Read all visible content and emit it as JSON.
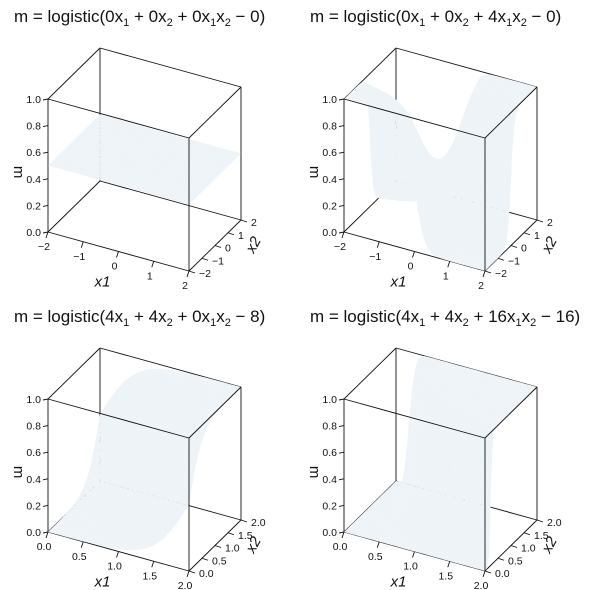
{
  "colors": {
    "mesh": "#7fb1dc",
    "face": "#eef3f8",
    "axis": "#111111"
  },
  "chart_data": [
    {
      "type": "surface",
      "title_parts": [
        "m = logistic(0x",
        "1",
        " + 0x",
        "2",
        " + 0x",
        "1",
        "x",
        "2",
        " − 0)"
      ],
      "coef": {
        "b1": 0,
        "b2": 0,
        "b12": 0,
        "c": 0
      },
      "xlabel": "x1",
      "ylabel": "x2",
      "zlabel": "m",
      "xlim": [
        -2,
        2
      ],
      "ylim": [
        -2,
        2
      ],
      "zlim": [
        0,
        1
      ],
      "xticks": [
        "−2",
        "−1",
        "0",
        "1",
        "2"
      ],
      "yticks": [
        "−2",
        "−1",
        "0",
        "1",
        "2"
      ],
      "zticks": [
        "0.0",
        "0.2",
        "0.4",
        "0.6",
        "0.8",
        "1.0"
      ],
      "grid_n": 25
    },
    {
      "type": "surface",
      "title_parts": [
        "m = logistic(0x",
        "1",
        " + 0x",
        "2",
        " + 4x",
        "1",
        "x",
        "2",
        " − 0)"
      ],
      "coef": {
        "b1": 0,
        "b2": 0,
        "b12": 4,
        "c": 0
      },
      "xlabel": "x1",
      "ylabel": "x2",
      "zlabel": "m",
      "xlim": [
        -2,
        2
      ],
      "ylim": [
        -2,
        2
      ],
      "zlim": [
        0,
        1
      ],
      "xticks": [
        "−2",
        "−1",
        "0",
        "1",
        "2"
      ],
      "yticks": [
        "−2",
        "−1",
        "0",
        "1",
        "2"
      ],
      "zticks": [
        "0.0",
        "0.2",
        "0.4",
        "0.6",
        "0.8",
        "1.0"
      ],
      "grid_n": 25
    },
    {
      "type": "surface",
      "title_parts": [
        "m = logistic(4x",
        "1",
        " + 4x",
        "2",
        " + 0x",
        "1",
        "x",
        "2",
        " − 8)"
      ],
      "coef": {
        "b1": 4,
        "b2": 4,
        "b12": 0,
        "c": -8
      },
      "xlabel": "x1",
      "ylabel": "x2",
      "zlabel": "m",
      "xlim": [
        0,
        2
      ],
      "ylim": [
        0,
        2
      ],
      "zlim": [
        0,
        1
      ],
      "xticks": [
        "0.0",
        "0.5",
        "1.0",
        "1.5",
        "2.0"
      ],
      "yticks": [
        "0.0",
        "0.5",
        "1.0",
        "1.5",
        "2.0"
      ],
      "zticks": [
        "0.0",
        "0.2",
        "0.4",
        "0.6",
        "0.8",
        "1.0"
      ],
      "grid_n": 25
    },
    {
      "type": "surface",
      "title_parts": [
        "m = logistic(4x",
        "1",
        " + 4x",
        "2",
        " + 16x",
        "1",
        "x",
        "2",
        " − 16)"
      ],
      "coef": {
        "b1": 4,
        "b2": 4,
        "b12": 16,
        "c": -16
      },
      "xlabel": "x1",
      "ylabel": "x2",
      "zlabel": "m",
      "xlim": [
        0,
        2
      ],
      "ylim": [
        0,
        2
      ],
      "zlim": [
        0,
        1
      ],
      "xticks": [
        "0.0",
        "0.5",
        "1.0",
        "1.5",
        "2.0"
      ],
      "yticks": [
        "0.0",
        "0.5",
        "1.0",
        "1.5",
        "2.0"
      ],
      "zticks": [
        "0.0",
        "0.2",
        "0.4",
        "0.6",
        "0.8",
        "1.0"
      ],
      "grid_n": 25
    }
  ]
}
